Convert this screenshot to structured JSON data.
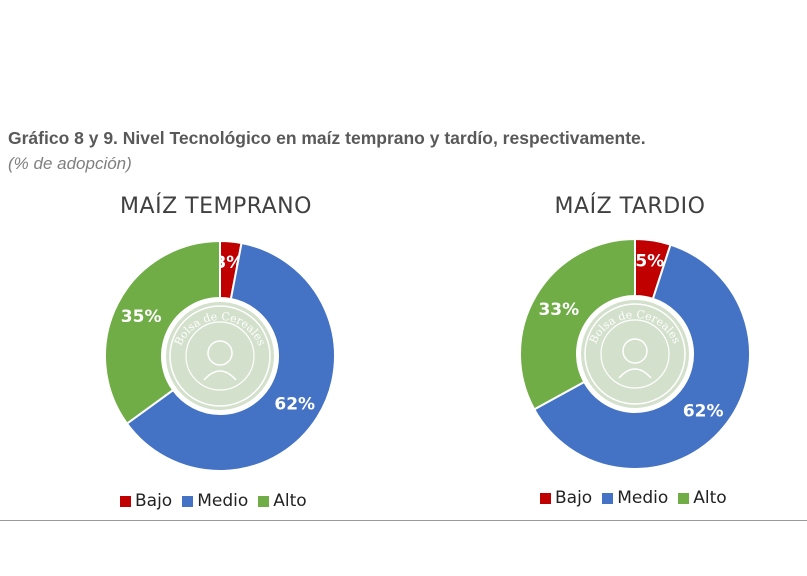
{
  "figure": {
    "title": "Gráfico 8 y 9. Nivel Tecnológico en maíz temprano y tardío, respectivamente.",
    "subtitle": "(% de adopción)"
  },
  "colors": {
    "Bajo": "#c00000",
    "Medio": "#4472c4",
    "Alto": "#70ad47"
  },
  "watermark": {
    "text": "Bolsa de Cereales",
    "icon": "bolsa-de-cereales-seal-icon"
  },
  "chart_data": [
    {
      "type": "pie",
      "title": "MAÍZ TEMPRANO",
      "categories": [
        "Bajo",
        "Medio",
        "Alto"
      ],
      "values": [
        3,
        62,
        35
      ],
      "labels": [
        "3%",
        "62%",
        "35%"
      ],
      "legend": "bottom"
    },
    {
      "type": "pie",
      "title": "MAÍZ TARDIO",
      "categories": [
        "Bajo",
        "Medio",
        "Alto"
      ],
      "values": [
        5,
        62,
        33
      ],
      "labels": [
        "5%",
        "62%",
        "33%"
      ],
      "legend": "bottom"
    }
  ]
}
